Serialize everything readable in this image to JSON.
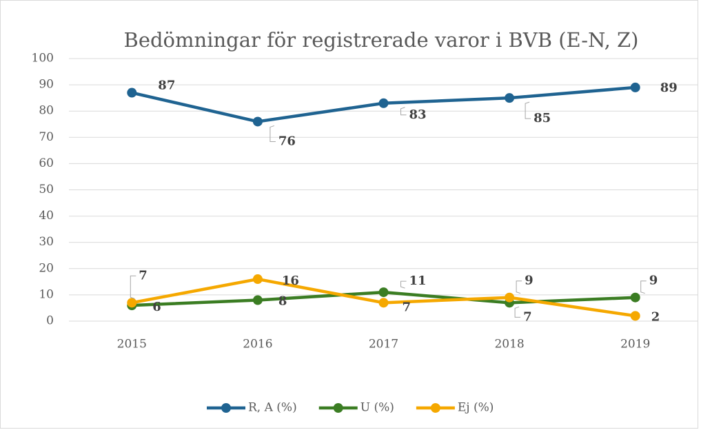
{
  "chart_data": {
    "type": "line",
    "title": "Bedömningar för registrerade varor i BVB (E-N, Z)",
    "categories": [
      "2015",
      "2016",
      "2017",
      "2018",
      "2019"
    ],
    "series": [
      {
        "name": "R, A (%)",
        "color": "#1f6391",
        "values": [
          87,
          76,
          83,
          85,
          89
        ]
      },
      {
        "name": "U (%)",
        "color": "#3b7d23",
        "values": [
          6,
          8,
          11,
          7,
          9
        ]
      },
      {
        "name": "Ej (%)",
        "color": "#f5a800",
        "values": [
          7,
          16,
          7,
          9,
          2
        ]
      }
    ],
    "ylim": [
      0,
      100
    ],
    "yticks": [
      0,
      10,
      20,
      30,
      40,
      50,
      60,
      70,
      80,
      90,
      100
    ],
    "grid": true,
    "legend": "bottom"
  }
}
